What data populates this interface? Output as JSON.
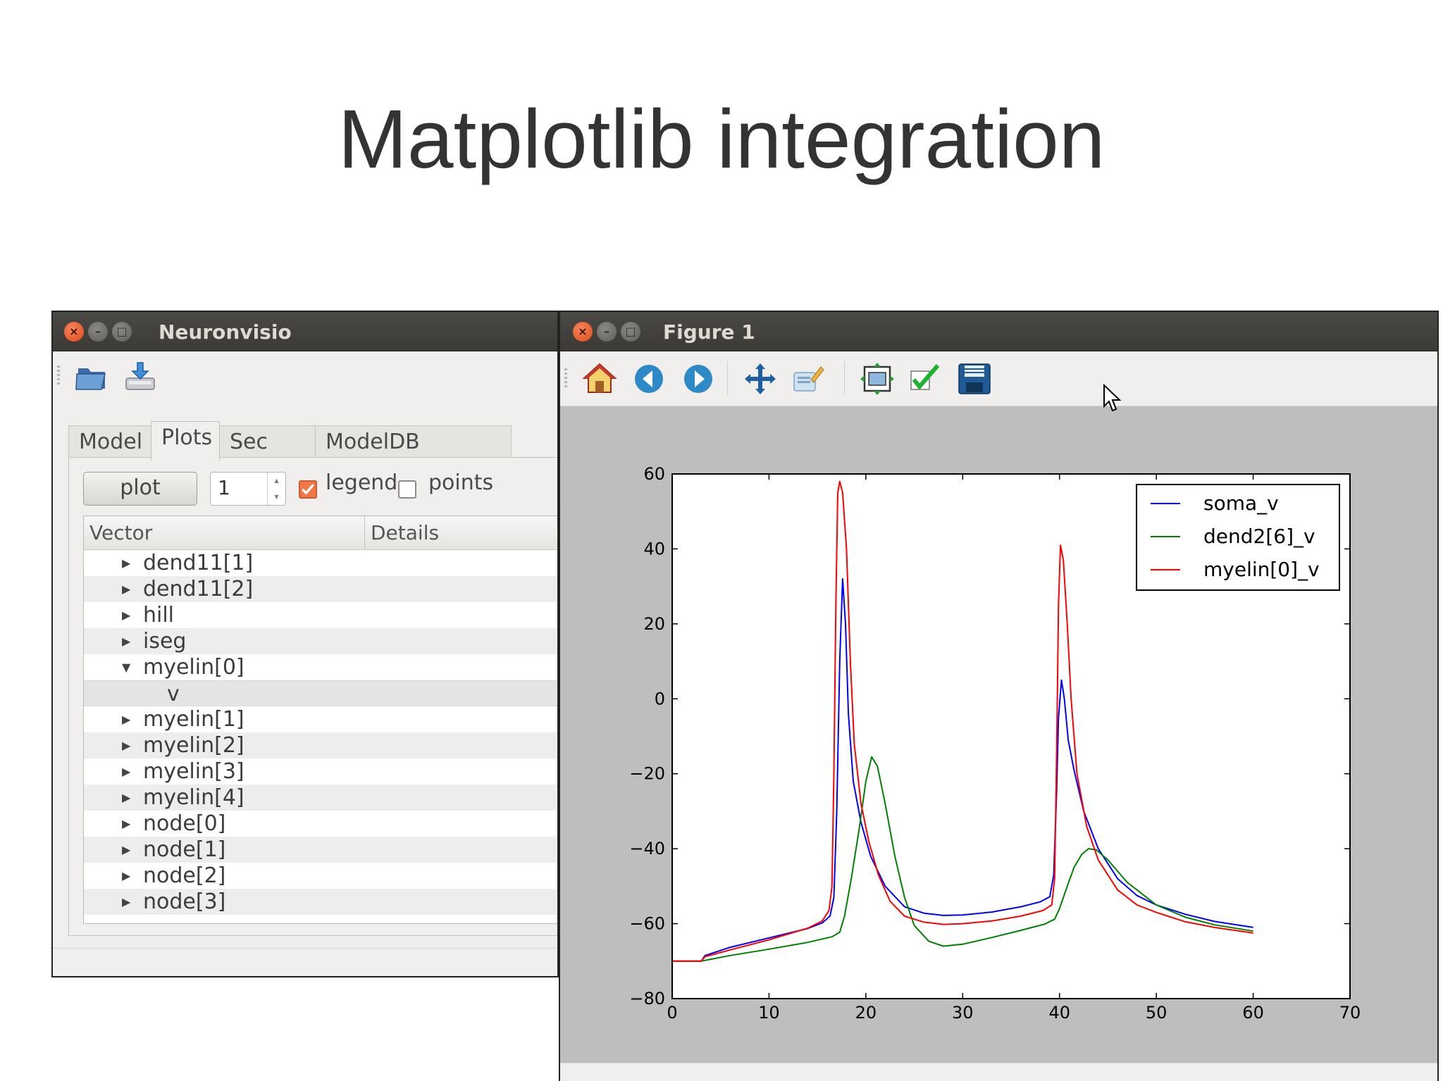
{
  "slide": {
    "title": "Matplotlib integration"
  },
  "neuronvisio": {
    "title": "Neuronvisio",
    "toolbar_icons": [
      "open-folder-icon",
      "load-icon"
    ],
    "tabs": [
      {
        "label": "Model",
        "active": false
      },
      {
        "label": "Plots",
        "active": true
      },
      {
        "label": "Sec Info",
        "active": false
      },
      {
        "label": "ModelDB Explorer",
        "active": false
      }
    ],
    "plot_button": "plot",
    "spin_value": "1",
    "legend_label": "legend",
    "legend_checked": true,
    "points_label": "points",
    "points_checked": false,
    "columns": [
      "Vector",
      "Details"
    ],
    "rows": [
      {
        "label": "dend11[1]",
        "expanded": false
      },
      {
        "label": "dend11[2]",
        "expanded": false
      },
      {
        "label": "hill",
        "expanded": false
      },
      {
        "label": "iseg",
        "expanded": false
      },
      {
        "label": "myelin[0]",
        "expanded": true
      },
      {
        "label": "v",
        "child": true
      },
      {
        "label": "myelin[1]",
        "expanded": false
      },
      {
        "label": "myelin[2]",
        "expanded": false
      },
      {
        "label": "myelin[3]",
        "expanded": false
      },
      {
        "label": "myelin[4]",
        "expanded": false
      },
      {
        "label": "node[0]",
        "expanded": false
      },
      {
        "label": "node[1]",
        "expanded": false
      },
      {
        "label": "node[2]",
        "expanded": false
      },
      {
        "label": "node[3]",
        "expanded": false
      }
    ]
  },
  "figure": {
    "title": "Figure 1",
    "toolbar_icons": [
      "home-icon",
      "back-icon",
      "forward-icon",
      "pan-icon",
      "edit-axis-icon",
      "subplots-icon",
      "apply-icon",
      "save-icon"
    ]
  },
  "chart_data": {
    "type": "line",
    "title": "",
    "xlabel": "",
    "ylabel": "",
    "xlim": [
      0,
      70
    ],
    "ylim": [
      -80,
      60
    ],
    "xticks": [
      0,
      10,
      20,
      30,
      40,
      50,
      60,
      70
    ],
    "yticks": [
      60,
      40,
      20,
      0,
      -20,
      -40,
      -60,
      -80
    ],
    "xtick_labels": [
      "0",
      "10",
      "20",
      "30",
      "40",
      "50",
      "60",
      "70"
    ],
    "ytick_labels": [
      "60",
      "40",
      "20",
      "0",
      "−20",
      "−40",
      "−60",
      "−80"
    ],
    "legend": "top-right",
    "grid": false,
    "series": [
      {
        "name": "soma_v",
        "color": "#0000ff",
        "points": [
          [
            0,
            -70
          ],
          [
            3,
            -70
          ],
          [
            3.4,
            -68.5
          ],
          [
            6,
            -66.3
          ],
          [
            10,
            -63.8
          ],
          [
            14,
            -61.3
          ],
          [
            15.5,
            -59.8
          ],
          [
            16.3,
            -58
          ],
          [
            16.7,
            -53
          ],
          [
            17,
            -30
          ],
          [
            17.3,
            10
          ],
          [
            17.6,
            32
          ],
          [
            17.9,
            20
          ],
          [
            18.2,
            -4
          ],
          [
            18.7,
            -22
          ],
          [
            19.5,
            -33
          ],
          [
            20.5,
            -42
          ],
          [
            22,
            -50
          ],
          [
            24,
            -55.5
          ],
          [
            26,
            -57.2
          ],
          [
            28,
            -57.8
          ],
          [
            30,
            -57.7
          ],
          [
            33,
            -56.9
          ],
          [
            36,
            -55.5
          ],
          [
            38,
            -54.2
          ],
          [
            39,
            -52.8
          ],
          [
            39.4,
            -47
          ],
          [
            39.7,
            -25
          ],
          [
            39.9,
            -5
          ],
          [
            40.2,
            5
          ],
          [
            40.5,
            0
          ],
          [
            40.9,
            -11
          ],
          [
            41.5,
            -19
          ],
          [
            42.5,
            -30
          ],
          [
            44,
            -40
          ],
          [
            46,
            -48
          ],
          [
            48,
            -52.5
          ],
          [
            50,
            -55
          ],
          [
            53,
            -57.5
          ],
          [
            56,
            -59.4
          ],
          [
            60,
            -61
          ]
        ]
      },
      {
        "name": "dend2[6]_v",
        "color": "#008000",
        "points": [
          [
            0,
            -70
          ],
          [
            3,
            -70
          ],
          [
            4,
            -69.5
          ],
          [
            6,
            -68.5
          ],
          [
            10,
            -66.8
          ],
          [
            14,
            -65
          ],
          [
            16.5,
            -63.5
          ],
          [
            17.3,
            -62.3
          ],
          [
            17.8,
            -58
          ],
          [
            18.5,
            -48
          ],
          [
            19.3,
            -35
          ],
          [
            20,
            -22
          ],
          [
            20.6,
            -15.5
          ],
          [
            21.2,
            -18
          ],
          [
            22,
            -28
          ],
          [
            23,
            -42
          ],
          [
            24,
            -53
          ],
          [
            25,
            -60.5
          ],
          [
            26.5,
            -64.7
          ],
          [
            28,
            -66
          ],
          [
            30,
            -65.5
          ],
          [
            33,
            -63.7
          ],
          [
            36,
            -61.8
          ],
          [
            38.5,
            -60.1
          ],
          [
            39.5,
            -58.8
          ],
          [
            40,
            -56
          ],
          [
            40.8,
            -50
          ],
          [
            41.5,
            -45
          ],
          [
            42.3,
            -41.5
          ],
          [
            43,
            -40
          ],
          [
            43.8,
            -40.3
          ],
          [
            45,
            -43
          ],
          [
            47,
            -49
          ],
          [
            50,
            -55
          ],
          [
            53,
            -58.3
          ],
          [
            56,
            -60.3
          ],
          [
            60,
            -62
          ]
        ]
      },
      {
        "name": "myelin[0]_v",
        "color": "#ff0000",
        "points": [
          [
            0,
            -70
          ],
          [
            3,
            -70
          ],
          [
            3.4,
            -68.8
          ],
          [
            6,
            -67
          ],
          [
            10,
            -64.3
          ],
          [
            14,
            -61.2
          ],
          [
            15.5,
            -59.3
          ],
          [
            16.2,
            -56.5
          ],
          [
            16.5,
            -50
          ],
          [
            16.7,
            -20
          ],
          [
            16.9,
            25
          ],
          [
            17.1,
            55
          ],
          [
            17.3,
            58
          ],
          [
            17.6,
            55
          ],
          [
            18,
            40
          ],
          [
            18.4,
            10
          ],
          [
            18.8,
            -12
          ],
          [
            19.5,
            -28
          ],
          [
            20.3,
            -38
          ],
          [
            21.3,
            -47
          ],
          [
            22.5,
            -54
          ],
          [
            24,
            -58
          ],
          [
            26,
            -59.6
          ],
          [
            28,
            -60.2
          ],
          [
            30,
            -60
          ],
          [
            33,
            -59.3
          ],
          [
            36,
            -58
          ],
          [
            38.3,
            -56.5
          ],
          [
            39.2,
            -55
          ],
          [
            39.5,
            -48
          ],
          [
            39.7,
            -15
          ],
          [
            39.9,
            25
          ],
          [
            40.1,
            41
          ],
          [
            40.4,
            37
          ],
          [
            40.8,
            20
          ],
          [
            41.2,
            0
          ],
          [
            41.8,
            -20
          ],
          [
            42.8,
            -34
          ],
          [
            44,
            -43
          ],
          [
            46,
            -51
          ],
          [
            48,
            -55
          ],
          [
            50,
            -57
          ],
          [
            53,
            -59.5
          ],
          [
            56,
            -61
          ],
          [
            60,
            -62.5
          ]
        ]
      }
    ]
  }
}
